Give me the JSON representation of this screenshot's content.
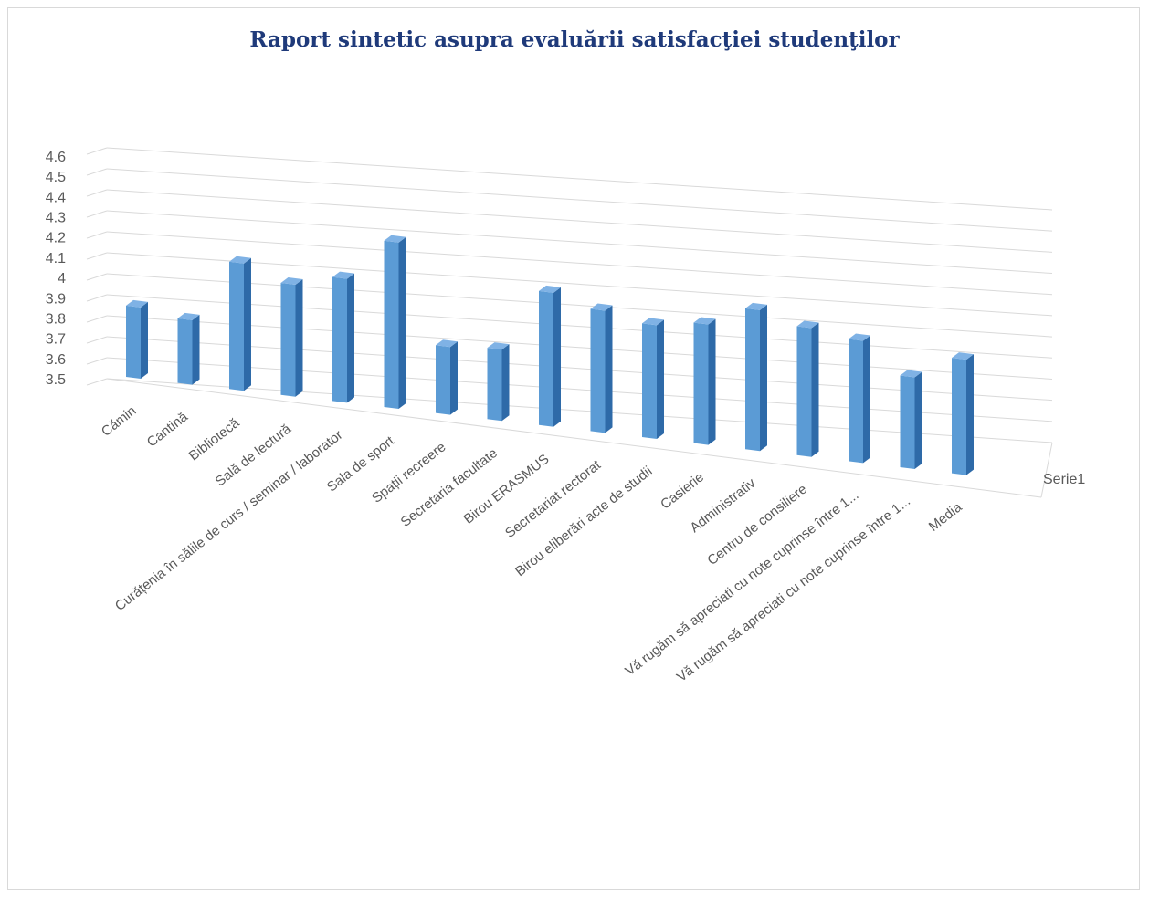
{
  "chart_data": {
    "type": "bar",
    "title": "Raport sintetic asupra evaluării satisfacţiei studenţilor",
    "categories": [
      "Cămin",
      "Cantină",
      "Bibliotecă",
      "Sală de lectură",
      "Curățenia în sălile de curs / seminar / laborator",
      "Sala de sport",
      "Spații recreere",
      "Secretaria facultate",
      "Birou ERASMUS",
      "Secretariat rectorat",
      "Birou eliberări acte de studii",
      "Casierie",
      "Administrativ",
      "Centru de consiliere",
      "Vă rugăm să apreciati cu note cuprinse între 1...",
      "Vă rugăm să apreciati cu note cuprinse între 1...",
      "Media"
    ],
    "series": [
      {
        "name": "Serie1",
        "values": [
          3.92,
          3.88,
          4.25,
          4.16,
          4.23,
          4.48,
          3.9,
          3.92,
          4.29,
          4.22,
          4.17,
          4.21,
          4.33,
          4.26,
          4.22,
          4.04,
          4.18
        ],
        "color": "#5b9bd5"
      }
    ],
    "yticks": [
      "3.5",
      "3.6",
      "3.7",
      "3.8",
      "3.9",
      "4",
      "4.1",
      "4.2",
      "4.3",
      "4.4",
      "4.5",
      "4.6"
    ],
    "ylim": [
      3.5,
      4.6
    ],
    "grid": true,
    "legend": "none",
    "style": "3d-column"
  }
}
